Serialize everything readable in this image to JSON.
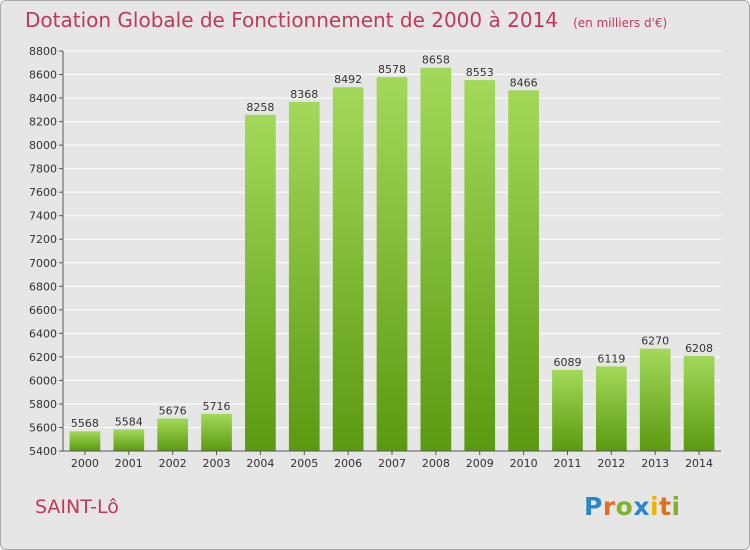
{
  "title": "Dotation Globale de Fonctionnement de 2000 à 2014",
  "unit_note": "(en milliers d'€)",
  "commune": "SAINT-Lô",
  "logo": {
    "letters": [
      "P",
      "r",
      "o",
      "x",
      "i",
      "t",
      "i"
    ],
    "colors": [
      "#2a86c8",
      "#e0701e",
      "#7fb428",
      "#2a86c8",
      "#e8b800",
      "#e0701e",
      "#7fb428"
    ]
  },
  "colors": {
    "title": "#c0395a",
    "background": "#e6e6e6",
    "bar_light": "#a3d95a",
    "bar_dark": "#5a9a10",
    "grid": "#ffffff"
  },
  "chart_data": {
    "type": "bar",
    "title": "Dotation Globale de Fonctionnement de 2000 à 2014",
    "categories": [
      "2000",
      "2001",
      "2002",
      "2003",
      "2004",
      "2005",
      "2006",
      "2007",
      "2008",
      "2009",
      "2010",
      "2011",
      "2012",
      "2013",
      "2014"
    ],
    "values": [
      5568,
      5584,
      5676,
      5716,
      8258,
      8368,
      8492,
      8578,
      8658,
      8553,
      8466,
      6089,
      6119,
      6270,
      6208
    ],
    "ylim": [
      5400,
      8800
    ],
    "yticks": [
      5400,
      5600,
      5800,
      6000,
      6200,
      6400,
      6600,
      6800,
      7000,
      7200,
      7400,
      7600,
      7800,
      8000,
      8200,
      8400,
      8600,
      8800
    ],
    "grid": true,
    "xlabel": "",
    "ylabel": ""
  }
}
